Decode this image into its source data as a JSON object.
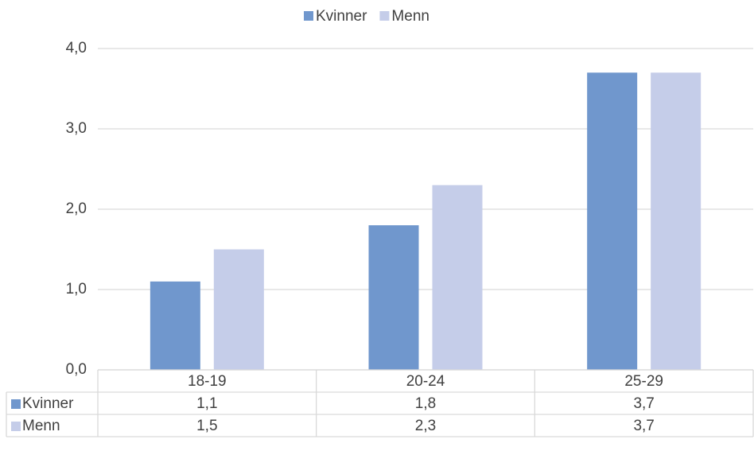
{
  "chart_data": {
    "type": "bar",
    "categories": [
      "18-19",
      "20-24",
      "25-29"
    ],
    "series": [
      {
        "name": "Kvinner",
        "color": "#7097cd",
        "values": [
          1.1,
          1.8,
          3.7
        ],
        "value_labels": [
          "1,1",
          "1,8",
          "3,7"
        ]
      },
      {
        "name": "Menn",
        "color": "#c5cde9",
        "values": [
          1.5,
          2.3,
          3.7
        ],
        "value_labels": [
          "1,5",
          "2,3",
          "3,7"
        ]
      }
    ],
    "ylim": [
      0,
      4
    ],
    "yticks": [
      {
        "value": 0,
        "label": "0,0"
      },
      {
        "value": 1,
        "label": "1,0"
      },
      {
        "value": 2,
        "label": "2,0"
      },
      {
        "value": 3,
        "label": "3,0"
      },
      {
        "value": 4,
        "label": "4,0"
      }
    ],
    "grid": true,
    "legend": "top"
  }
}
